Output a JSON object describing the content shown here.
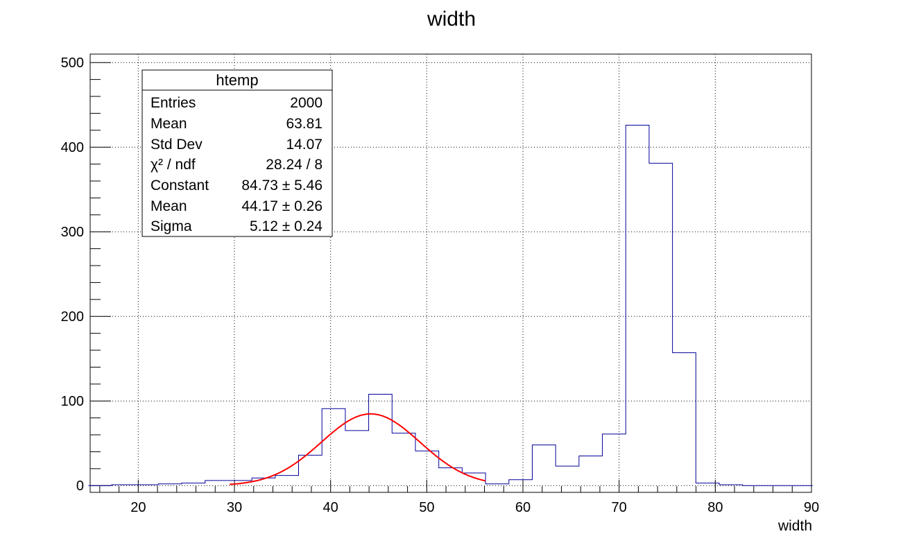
{
  "chart_data": {
    "type": "histogram",
    "title": "width",
    "xlabel": "width",
    "ylabel": "",
    "xlim": [
      15,
      90
    ],
    "ylim": [
      -8,
      510
    ],
    "grid": true,
    "x_ticks": [
      20,
      30,
      40,
      50,
      60,
      70,
      80,
      90
    ],
    "y_ticks": [
      0,
      100,
      200,
      300,
      400,
      500
    ],
    "series": [
      {
        "kind": "histogram",
        "color": "#000099",
        "bin_edges": [
          14.8,
          17.23,
          19.66,
          22.09,
          24.52,
          26.95,
          29.38,
          31.81,
          34.24,
          36.67,
          39.1,
          41.53,
          43.96,
          46.39,
          48.82,
          51.25,
          53.68,
          56.11,
          58.54,
          60.97,
          63.4,
          65.83,
          68.26,
          70.69,
          73.12,
          75.55,
          77.98,
          80.41,
          82.84,
          85.27,
          87.7,
          90.13
        ],
        "values": [
          0,
          1,
          1,
          2,
          3,
          6,
          6,
          9,
          12,
          36,
          91,
          65,
          108,
          62,
          41,
          21,
          15,
          2,
          7,
          48,
          23,
          35,
          61,
          426,
          381,
          157,
          3,
          1,
          0,
          0,
          0
        ]
      },
      {
        "kind": "gaussian_fit",
        "color": "#ff0000",
        "constant": 84.73,
        "mean": 44.17,
        "sigma": 5.12,
        "x_range": [
          29.5,
          56.1
        ]
      }
    ],
    "stats_box": {
      "title": "htemp",
      "rows": [
        {
          "label": "Entries",
          "value": "2000"
        },
        {
          "label": "Mean",
          "value": "63.81"
        },
        {
          "label": "Std Dev",
          "value": "14.07"
        },
        {
          "label": "χ² / ndf",
          "value": "28.24 / 8"
        },
        {
          "label": "Constant",
          "value": "84.73 ± 5.46"
        },
        {
          "label": "Mean",
          "value": "44.17 ± 0.26"
        },
        {
          "label": "Sigma",
          "value": "5.12 ± 0.24"
        }
      ]
    }
  }
}
